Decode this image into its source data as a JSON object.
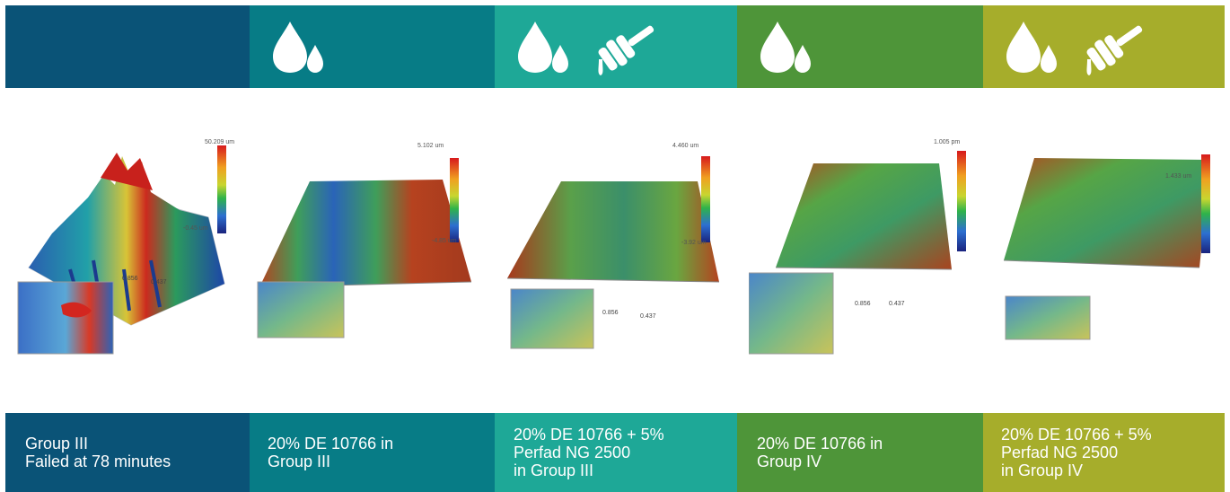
{
  "colors": {
    "group3": "#0a5377",
    "de_group3": "#077c86",
    "de_perfad_group3": "#1ea897",
    "de_group4": "#4e9539",
    "de_perfad_group4": "#a6ad2b",
    "icon": "#ffffff"
  },
  "header_icons": [
    [],
    [
      "water-drops-icon"
    ],
    [
      "water-drops-icon",
      "honey-dipper-icon"
    ],
    [
      "water-drops-icon"
    ],
    [
      "water-drops-icon",
      "honey-dipper-icon"
    ]
  ],
  "columns": [
    {
      "line1": "Group III",
      "line2": "Failed at 78 minutes",
      "line3": "",
      "scale_max": "50.209 um",
      "scale_min": "-0.45 um",
      "tick_a": "0.856",
      "tick_b": "0.437"
    },
    {
      "line1": "20% DE 10766 in",
      "line2": "Group III",
      "line3": "",
      "scale_max": "5.102 um",
      "scale_min": "-4.85 um",
      "tick_a": "",
      "tick_b": ""
    },
    {
      "line1": "20% DE 10766 + 5%",
      "line2": "Perfad NG 2500",
      "line3": "in Group III",
      "scale_max": "4.460 um",
      "scale_min": "-3.92 um",
      "tick_a": "0.856",
      "tick_b": "0.437"
    },
    {
      "line1": "20% DE 10766 in",
      "line2": "Group IV",
      "line3": "",
      "scale_max": "1.005 pm",
      "scale_min": "",
      "tick_a": "0.856",
      "tick_b": "0.437"
    },
    {
      "line1": "20% DE 10766 + 5%",
      "line2": "Perfad NG 2500",
      "line3": "in Group IV",
      "scale_max": "1.433 um",
      "scale_min": "",
      "tick_a": "",
      "tick_b": ""
    }
  ]
}
